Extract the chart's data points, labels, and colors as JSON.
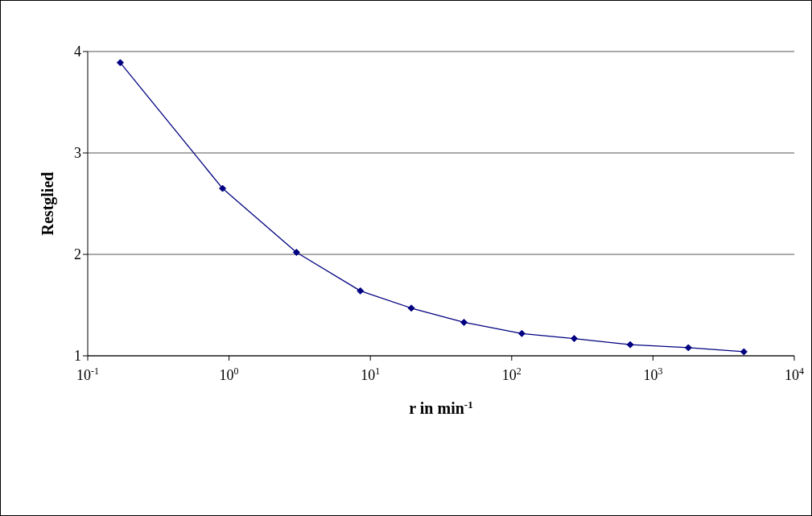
{
  "chart_data": {
    "type": "line",
    "xlabel": "r in min$^{-1}$",
    "ylabel": "Restglied",
    "x": [
      0.17,
      0.9,
      3.0,
      8.5,
      19.5,
      46,
      118,
      277,
      690,
      1780,
      4400
    ],
    "series": [
      {
        "color": "#000080",
        "values": [
          3.89,
          2.65,
          2.02,
          1.64,
          1.47,
          1.33,
          1.22,
          1.17,
          1.11,
          1.08,
          1.04
        ]
      }
    ],
    "log": "x",
    "xlim": [
      0.1,
      10000
    ],
    "xticks": [
      {
        "value": 0.1,
        "label": "10$^{-1}$"
      },
      {
        "value": 1,
        "label": "10$^{0}$"
      },
      {
        "value": 10,
        "label": "10$^{1}$"
      },
      {
        "value": 100,
        "label": "10$^{2}$"
      },
      {
        "value": 1000,
        "label": "10$^{3}$"
      },
      {
        "value": 10000,
        "label": "10$^{4}$"
      }
    ],
    "ylim": [
      1,
      4
    ],
    "yticks": [
      1,
      2,
      3,
      4
    ],
    "grid": "y",
    "marker": "diamond",
    "line_style": "solid"
  }
}
